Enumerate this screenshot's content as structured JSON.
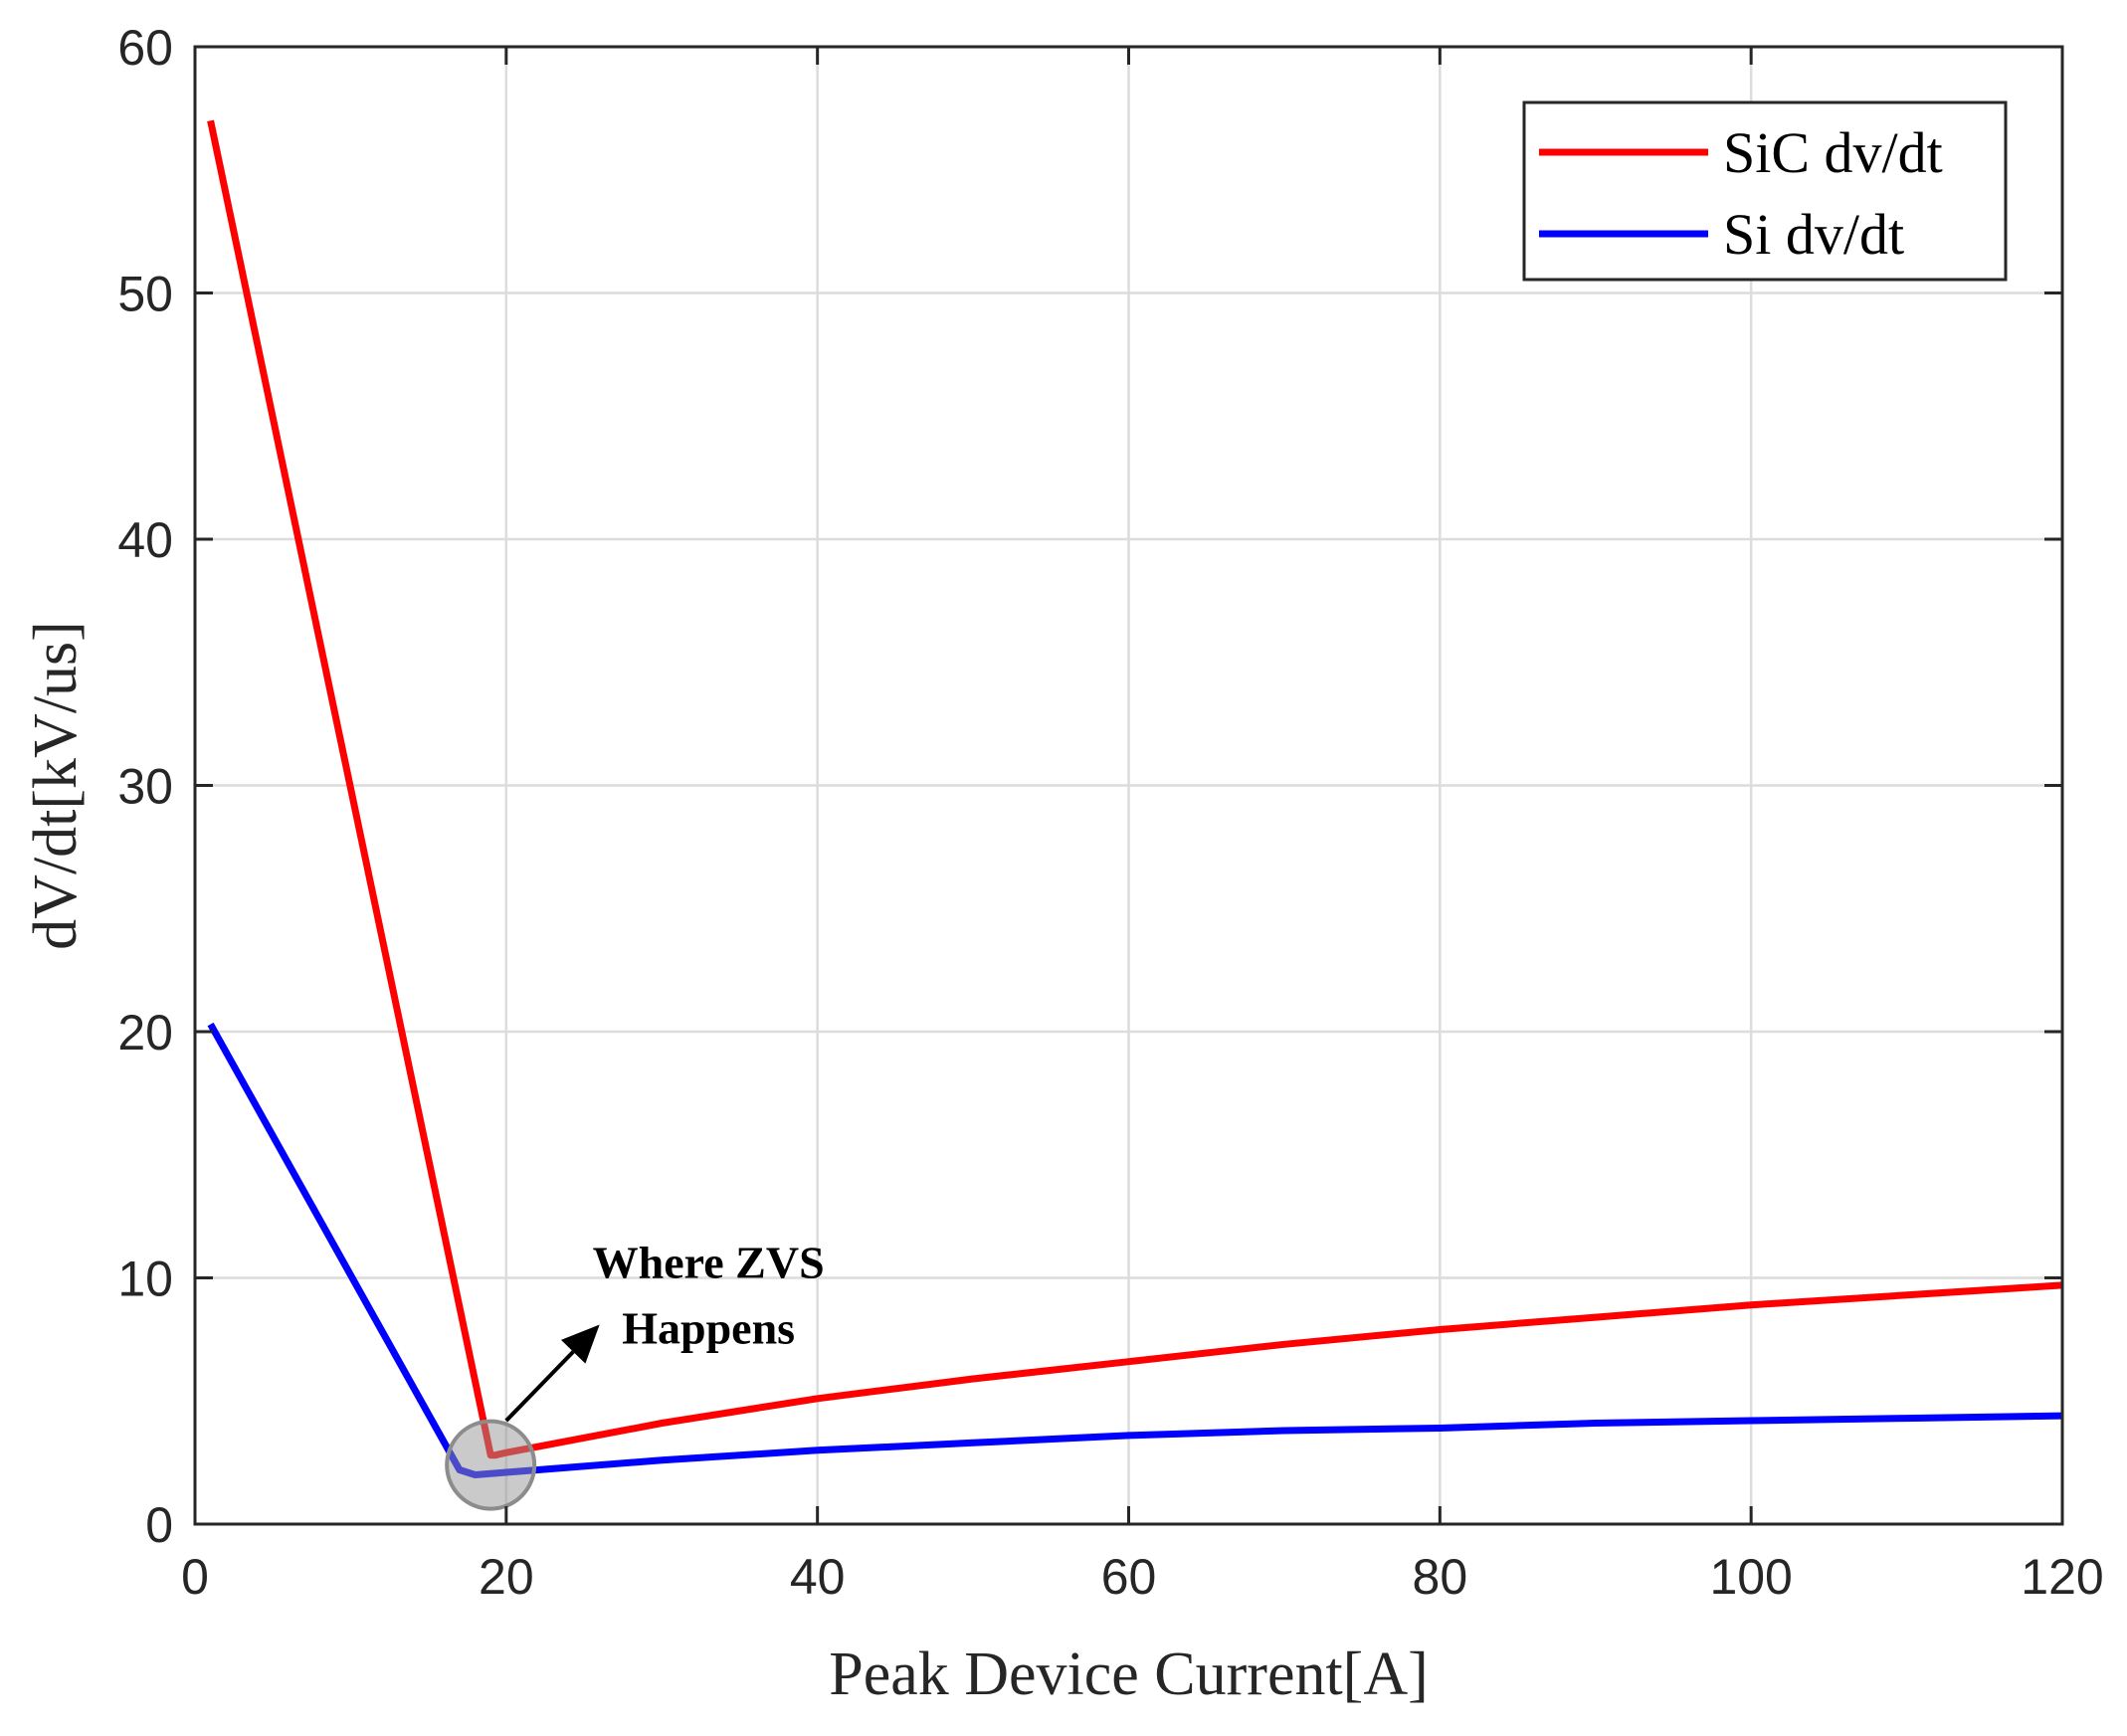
{
  "chart_data": {
    "type": "line",
    "title": "",
    "xlabel": "Peak Device Current[A]",
    "ylabel": "dV/dt[kV/us]",
    "xlim": [
      0,
      120
    ],
    "ylim": [
      0,
      60
    ],
    "xticks": [
      0,
      20,
      40,
      60,
      80,
      100,
      120
    ],
    "yticks": [
      0,
      10,
      20,
      30,
      40,
      50,
      60
    ],
    "grid": true,
    "legend_position": "top-right",
    "series": [
      {
        "name": "SiC dv/dt",
        "color": "#ff0000",
        "x": [
          1,
          19,
          19.3,
          20,
          30,
          40,
          50,
          60,
          70,
          80,
          90,
          100,
          110,
          120
        ],
        "y": [
          57,
          2.8,
          2.8,
          2.9,
          4.1,
          5.1,
          5.9,
          6.6,
          7.3,
          7.9,
          8.4,
          8.9,
          9.3,
          9.7
        ]
      },
      {
        "name": "Si dv/dt",
        "color": "#0000ff",
        "x": [
          1,
          17,
          18,
          20,
          30,
          40,
          50,
          60,
          70,
          80,
          90,
          100,
          110,
          120
        ],
        "y": [
          20.3,
          2.2,
          2.0,
          2.1,
          2.6,
          3.0,
          3.3,
          3.6,
          3.8,
          3.9,
          4.1,
          4.2,
          4.3,
          4.4
        ]
      }
    ],
    "annotations": [
      {
        "text_lines": [
          "Where ZVS",
          "Happens"
        ],
        "marker": "circle",
        "marker_x": 19,
        "marker_y": 2.4,
        "arrow_from": [
          20,
          4.2
        ],
        "arrow_to": [
          26,
          8.1
        ],
        "text_x": 33,
        "text_y": 10
      }
    ]
  }
}
